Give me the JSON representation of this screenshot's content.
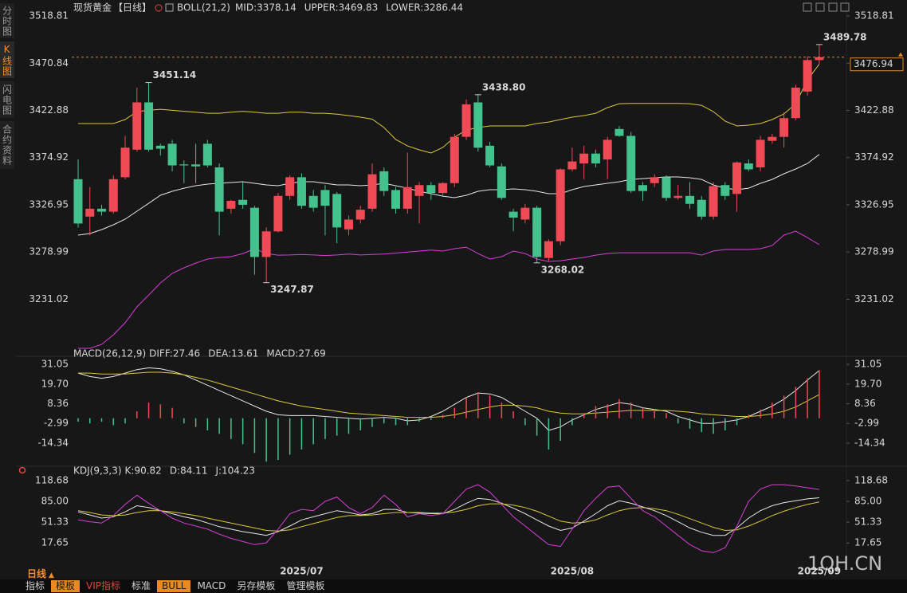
{
  "ui": {
    "sidebar": [
      "分时图",
      "K线图",
      "闪电图",
      "合约资料"
    ],
    "symbol": "现货黄金",
    "period": "【日线】",
    "period_bottom": "日线",
    "toolbar": [
      "指标",
      "模板",
      "VIP指标",
      "标准",
      "BULL",
      "MACD",
      "另存模板",
      "管理模板"
    ],
    "watermark": "1QH.CN"
  },
  "chart_data": [
    {
      "type": "candlestick",
      "indicator": "BOLL(21,2)",
      "categories": [
        null,
        null,
        null,
        null,
        null,
        null,
        null,
        null,
        null,
        null,
        null,
        null,
        null,
        null,
        null,
        null,
        null,
        null,
        null,
        "2025/07",
        null,
        null,
        null,
        null,
        null,
        null,
        null,
        null,
        null,
        null,
        null,
        null,
        null,
        null,
        null,
        null,
        null,
        null,
        null,
        null,
        null,
        null,
        "2025/08",
        null,
        null,
        null,
        null,
        null,
        null,
        null,
        null,
        null,
        null,
        null,
        null,
        null,
        null,
        null,
        null,
        null,
        null,
        null,
        null,
        "2025/09"
      ],
      "open": [
        3353,
        3315,
        3323,
        3320,
        3355,
        3383,
        3431,
        3387,
        3389,
        3368,
        3368,
        3389,
        3365,
        3323,
        3332,
        3324,
        3274,
        3300,
        3336,
        3355,
        3336,
        3342,
        3338,
        3302,
        3312,
        3323,
        3361,
        3342,
        3323,
        3336,
        3347,
        3339,
        3349,
        3396,
        3431,
        3387,
        3366,
        3320,
        3312,
        3324,
        3273,
        3290,
        3363,
        3369,
        3379,
        3373,
        3404,
        3397,
        3347,
        3349,
        3355,
        3334,
        3336,
        3332,
        3315,
        3347,
        3338,
        3369,
        3365,
        3392,
        3396,
        3415,
        3442,
        3474
      ],
      "high": [
        3373,
        3345,
        3327,
        3357,
        3397,
        3446,
        3451.14,
        3389,
        3393,
        3372,
        3389,
        3393,
        3369,
        3332,
        3350,
        3326,
        3304,
        3339,
        3357,
        3359,
        3342,
        3347,
        3340,
        3316,
        3326,
        3369,
        3365,
        3345,
        3380,
        3350,
        3350,
        3350,
        3399,
        3434,
        3438.8,
        3391,
        3369,
        3323,
        3328,
        3326,
        3292,
        3364,
        3385,
        3387,
        3383,
        3396,
        3407,
        3401,
        3350,
        3358,
        3357,
        3347,
        3350,
        3336,
        3350,
        3350,
        3371,
        3373,
        3397,
        3399,
        3421,
        3449,
        3478,
        3489.78
      ],
      "low": [
        3304,
        3296,
        3316,
        3318,
        3353,
        3381,
        3381,
        3377,
        3361,
        3349,
        3349,
        3365,
        3296,
        3318,
        3323,
        3256,
        3247.87,
        3299,
        3332,
        3323,
        3320,
        3296,
        3288,
        3296,
        3308,
        3320,
        3336,
        3318,
        3318,
        3308,
        3332,
        3336,
        3345,
        3393,
        3381,
        3365,
        3332,
        3300,
        3308,
        3268.02,
        3270,
        3286,
        3361,
        3353,
        3365,
        3353,
        3396,
        3339,
        3331,
        3345,
        3331,
        3332,
        3323,
        3312,
        3312,
        3332,
        3320,
        3361,
        3361,
        3389,
        3385,
        3413,
        3438,
        3470
      ],
      "close": [
        3308,
        3323,
        3320,
        3353,
        3385,
        3431,
        3383,
        3384,
        3367,
        3367,
        3366,
        3367,
        3320,
        3331,
        3327,
        3274,
        3300,
        3336,
        3355,
        3326,
        3324,
        3326,
        3304,
        3312,
        3322,
        3358,
        3341,
        3323,
        3345,
        3347,
        3339,
        3349,
        3396,
        3429,
        3385,
        3367,
        3334,
        3314,
        3324,
        3274,
        3290,
        3363,
        3371,
        3379,
        3369,
        3393,
        3397,
        3341,
        3341,
        3355,
        3334,
        3336,
        3328,
        3315,
        3346,
        3336,
        3370,
        3363,
        3393,
        3396,
        3415,
        3446,
        3474,
        3476.94
      ],
      "color_up": "#f04a56",
      "color_down": "#44c28e",
      "series": [
        {
          "name": "MID:3378.14",
          "color": "#e6e6e6",
          "values": [
            3296.2,
            3297.8,
            3301.8,
            3306.7,
            3312.4,
            3320.5,
            3328.5,
            3336.7,
            3340.7,
            3343.9,
            3346.4,
            3348,
            3348.8,
            3349.6,
            3350.4,
            3348.8,
            3347.2,
            3346.4,
            3348.8,
            3350.4,
            3350.4,
            3348.8,
            3347.2,
            3347.2,
            3346.4,
            3347.2,
            3348.8,
            3346.4,
            3343.9,
            3340.7,
            3338.3,
            3335.8,
            3334.2,
            3336.7,
            3340.7,
            3342.3,
            3342.3,
            3343.1,
            3342.3,
            3340.7,
            3338.3,
            3338.3,
            3342.3,
            3345.6,
            3347.2,
            3348.8,
            3350.4,
            3352.8,
            3353.6,
            3354.5,
            3355.3,
            3355.3,
            3354.5,
            3352.8,
            3347.2,
            3343.9,
            3342.3,
            3343.9,
            3348.8,
            3352.8,
            3358.5,
            3363.4,
            3369,
            3378.14
          ]
        },
        {
          "name": "UPPER:3469.83",
          "color": "#d9c93b",
          "values": [
            3409.5,
            3409.5,
            3409.5,
            3409.5,
            3413.6,
            3421.7,
            3423,
            3424,
            3423,
            3422,
            3421,
            3420,
            3420,
            3421,
            3422,
            3421,
            3420,
            3420,
            3421,
            3421,
            3420,
            3420,
            3419,
            3417.6,
            3416,
            3414,
            3405.5,
            3393.3,
            3386.8,
            3382.8,
            3379.6,
            3385.2,
            3395.7,
            3403,
            3405.5,
            3407.1,
            3407.1,
            3407.1,
            3407.1,
            3409.5,
            3411.1,
            3413.6,
            3416,
            3417.6,
            3420,
            3425.7,
            3429.7,
            3430,
            3430,
            3430,
            3430,
            3430,
            3429.7,
            3428,
            3421.7,
            3412,
            3407.1,
            3407.9,
            3409.5,
            3413.6,
            3419.2,
            3429.7,
            3454,
            3469.83
          ]
        },
        {
          "name": "LOWER:3286.44",
          "color": "#d63fd6",
          "values": [
            3181.2,
            3181.2,
            3185.2,
            3194.9,
            3207.1,
            3223.3,
            3235.4,
            3247.6,
            3257.3,
            3263,
            3267.8,
            3271.9,
            3273.5,
            3274.3,
            3277.5,
            3282.4,
            3277.5,
            3275.9,
            3276,
            3276.5,
            3276,
            3275.5,
            3276,
            3277,
            3276,
            3276.5,
            3277,
            3278,
            3279,
            3280,
            3281,
            3280,
            3282.4,
            3284,
            3277.5,
            3271.9,
            3274.3,
            3280,
            3277.5,
            3271.9,
            3269.4,
            3270.2,
            3271.9,
            3273.5,
            3275.9,
            3277.5,
            3278.3,
            3278.3,
            3278.3,
            3278.3,
            3278.3,
            3278.3,
            3278.3,
            3275.9,
            3280,
            3281.6,
            3281.6,
            3281.6,
            3282.4,
            3285.6,
            3296.2,
            3300.2,
            3293.7,
            3286.44
          ]
        }
      ],
      "annotations": [
        {
          "value": 3451.14,
          "label": "3451.14"
        },
        {
          "value": 3438.8,
          "label": "3438.80"
        },
        {
          "value": 3489.78,
          "label": "3489.78"
        },
        {
          "value": 3247.87,
          "label": "3247.87"
        },
        {
          "value": 3268.02,
          "label": "3268.02"
        }
      ],
      "last_price": 3476.94,
      "ylim": [
        3178.8,
        3523.67
      ],
      "yticks": [
        3518.81,
        3470.84,
        3422.88,
        3374.92,
        3326.95,
        3278.99,
        3231.02
      ]
    },
    {
      "type": "macd",
      "title": "MACD(26,12,9)",
      "color_up": "#f04a56",
      "color_down": "#44c28e",
      "series": [
        {
          "name": "DIFF:27.46",
          "color": "#e6e6e6",
          "values": [
            26,
            24,
            23,
            24,
            26,
            28,
            29,
            28.5,
            27,
            25,
            22,
            19,
            16,
            13,
            10,
            7,
            4,
            2,
            1.5,
            1.5,
            1.5,
            1,
            0.5,
            0,
            -0.5,
            0,
            0.5,
            0,
            -1.5,
            -1,
            1,
            4,
            8,
            12,
            14.5,
            14,
            12,
            8,
            4,
            0,
            -7,
            -5,
            -1,
            2,
            5,
            7,
            9,
            8,
            6,
            5,
            4,
            1,
            -1,
            -3,
            -3,
            -2,
            -1,
            1,
            4,
            7,
            11,
            16,
            22,
            27.46
          ]
        },
        {
          "name": "DEA:13.61",
          "color": "#d9c93b",
          "values": [
            26,
            26,
            25.5,
            25.5,
            25.5,
            26,
            26.5,
            26.5,
            26,
            25,
            23.5,
            22,
            20,
            18,
            16,
            14,
            12,
            10,
            8.5,
            7,
            6,
            5,
            4,
            3,
            2.5,
            2,
            1.5,
            1,
            0.5,
            0.5,
            0.5,
            1,
            2,
            3.5,
            5,
            6.5,
            7.5,
            7.5,
            7,
            6,
            4,
            3,
            2.5,
            2.5,
            3,
            3.5,
            4,
            4.5,
            4.5,
            4.5,
            4.5,
            4,
            3.5,
            2.5,
            2,
            1.5,
            1,
            1,
            1.5,
            2.5,
            4,
            6.5,
            10,
            13.61
          ]
        },
        {
          "name": "MACD:27.69",
          "color": "#d63fd6",
          "kind": "bar",
          "values": [
            -2,
            -3,
            -2,
            -4,
            -3,
            4,
            9,
            8,
            6,
            -3,
            -5,
            -7,
            -9,
            -12,
            -15,
            -20,
            -25,
            -24,
            -21,
            -18,
            -15,
            -12,
            -10,
            -9,
            -7,
            -5,
            -3,
            -4,
            -4,
            -2,
            -1,
            2,
            6,
            12,
            15,
            13,
            9,
            4,
            -4,
            -10,
            -18,
            -13,
            -4,
            3,
            7,
            8,
            11,
            9,
            6,
            5,
            3,
            -3,
            -6,
            -8,
            -9,
            -7,
            -4,
            2,
            5,
            9,
            13,
            18,
            23,
            27.69
          ]
        }
      ],
      "ylim": [
        -26.3,
        34.3
      ],
      "yticks": [
        31.05,
        {
          "value": 19.7,
          "label": "19.70"
        },
        8.36,
        -2.99,
        -14.34
      ]
    },
    {
      "type": "line",
      "title": "KDJ(9,3,3)",
      "series": [
        {
          "name": "K:90.82",
          "color": "#e6e6e6",
          "values": [
            68,
            63,
            58,
            60,
            68,
            78,
            75,
            70,
            65,
            60,
            56,
            50,
            44,
            40,
            36,
            33,
            30,
            36,
            45,
            55,
            60,
            65,
            70,
            67,
            63,
            65,
            72,
            72,
            67,
            66,
            65,
            65,
            72,
            82,
            90,
            88,
            82,
            74,
            65,
            55,
            45,
            38,
            42,
            53,
            65,
            78,
            86,
            82,
            76,
            70,
            62,
            52,
            42,
            35,
            30,
            30,
            42,
            58,
            70,
            78,
            83,
            86,
            89,
            90.82
          ]
        },
        {
          "name": "D:84.11",
          "color": "#d9c93b",
          "values": [
            70,
            67,
            63,
            62,
            63,
            67,
            70,
            70,
            68,
            65,
            62,
            58,
            54,
            50,
            46,
            42,
            38,
            37,
            39,
            44,
            49,
            54,
            59,
            62,
            62,
            63,
            65,
            67,
            67,
            67,
            66,
            66,
            68,
            72,
            78,
            81,
            81,
            79,
            75,
            69,
            61,
            53,
            50,
            51,
            55,
            63,
            70,
            74,
            75,
            73,
            70,
            64,
            57,
            50,
            43,
            38,
            39,
            45,
            53,
            62,
            69,
            75,
            80,
            84.11
          ]
        },
        {
          "name": "J:104.23",
          "color": "#d63fd6",
          "values": [
            55,
            52,
            50,
            62,
            80,
            95,
            82,
            70,
            58,
            50,
            45,
            40,
            32,
            25,
            20,
            15,
            18,
            40,
            65,
            72,
            70,
            85,
            92,
            75,
            65,
            75,
            95,
            80,
            60,
            65,
            62,
            65,
            85,
            105,
            112,
            100,
            80,
            60,
            45,
            30,
            15,
            12,
            40,
            70,
            90,
            108,
            110,
            90,
            70,
            60,
            45,
            30,
            15,
            5,
            2,
            10,
            45,
            85,
            105,
            112,
            112,
            110,
            107,
            104.23
          ]
        }
      ],
      "ylim": [
        -13,
        126.35
      ],
      "yticks": [
        118.68,
        {
          "value": 85,
          "label": "85.00"
        },
        51.33,
        17.65
      ]
    }
  ]
}
